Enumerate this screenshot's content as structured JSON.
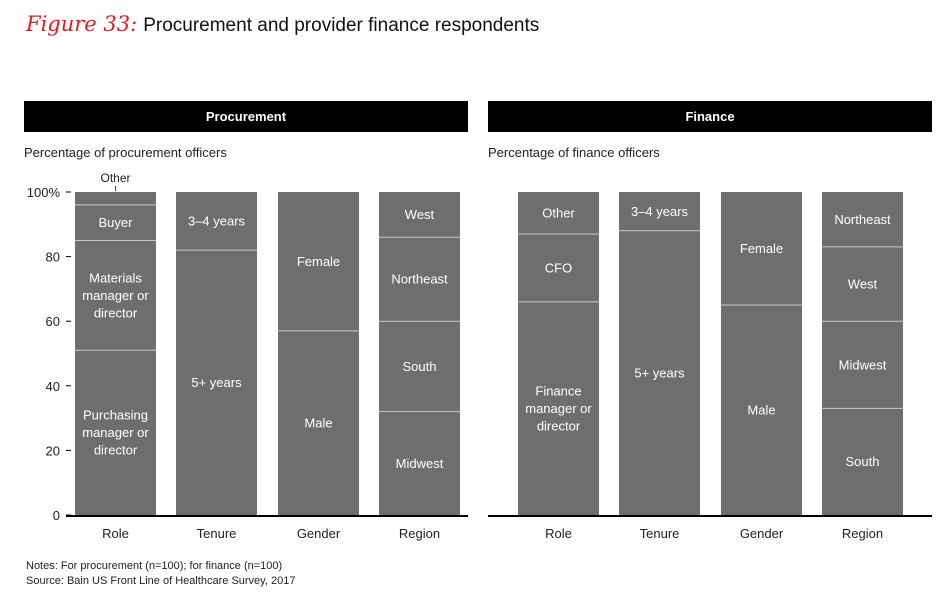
{
  "title": {
    "figure_label": "Figure 33:",
    "text": "Procurement and provider finance respondents"
  },
  "panels": [
    {
      "header": "Procurement",
      "ylabel": "Percentage of procurement officers"
    },
    {
      "header": "Finance",
      "ylabel": "Percentage of finance officers"
    }
  ],
  "notes": "Notes: For procurement (n=100); for finance (n=100)",
  "source": "Source: Bain US Front Line of Healthcare Survey, 2017",
  "colors": {
    "bar": "#6e6e6e",
    "separator": "#c8c8c8",
    "header_bg": "#000000",
    "accent": "#e11b22"
  },
  "chart_data": [
    {
      "type": "bar",
      "stacked": true,
      "title": "Procurement",
      "ylabel": "Percentage of procurement officers",
      "ylim": [
        0,
        100
      ],
      "yticks": [
        "0",
        "20",
        "40",
        "60",
        "80",
        "100%"
      ],
      "categories": [
        "Role",
        "Tenure",
        "Gender",
        "Region"
      ],
      "stacks": [
        {
          "category": "Role",
          "segments": [
            {
              "label": "Purchasing manager or director",
              "value": 51
            },
            {
              "label": "Materials manager or director",
              "value": 34
            },
            {
              "label": "Buyer",
              "value": 11
            },
            {
              "label": "Other",
              "value": 4,
              "label_outside": true
            }
          ]
        },
        {
          "category": "Tenure",
          "segments": [
            {
              "label": "5+ years",
              "value": 82
            },
            {
              "label": "3–4 years",
              "value": 18
            }
          ]
        },
        {
          "category": "Gender",
          "segments": [
            {
              "label": "Male",
              "value": 57
            },
            {
              "label": "Female",
              "value": 43
            }
          ]
        },
        {
          "category": "Region",
          "segments": [
            {
              "label": "Midwest",
              "value": 32
            },
            {
              "label": "South",
              "value": 28
            },
            {
              "label": "Northeast",
              "value": 26
            },
            {
              "label": "West",
              "value": 14
            }
          ]
        }
      ]
    },
    {
      "type": "bar",
      "stacked": true,
      "title": "Finance",
      "ylabel": "Percentage of finance officers",
      "ylim": [
        0,
        100
      ],
      "categories": [
        "Role",
        "Tenure",
        "Gender",
        "Region"
      ],
      "stacks": [
        {
          "category": "Role",
          "segments": [
            {
              "label": "Finance manager or director",
              "value": 66
            },
            {
              "label": "CFO",
              "value": 21
            },
            {
              "label": "Other",
              "value": 13
            }
          ]
        },
        {
          "category": "Tenure",
          "segments": [
            {
              "label": "5+ years",
              "value": 88
            },
            {
              "label": "3–4 years",
              "value": 12
            }
          ]
        },
        {
          "category": "Gender",
          "segments": [
            {
              "label": "Male",
              "value": 65
            },
            {
              "label": "Female",
              "value": 35
            }
          ]
        },
        {
          "category": "Region",
          "segments": [
            {
              "label": "South",
              "value": 33
            },
            {
              "label": "Midwest",
              "value": 27
            },
            {
              "label": "West",
              "value": 23
            },
            {
              "label": "Northeast",
              "value": 17
            }
          ]
        }
      ]
    }
  ]
}
